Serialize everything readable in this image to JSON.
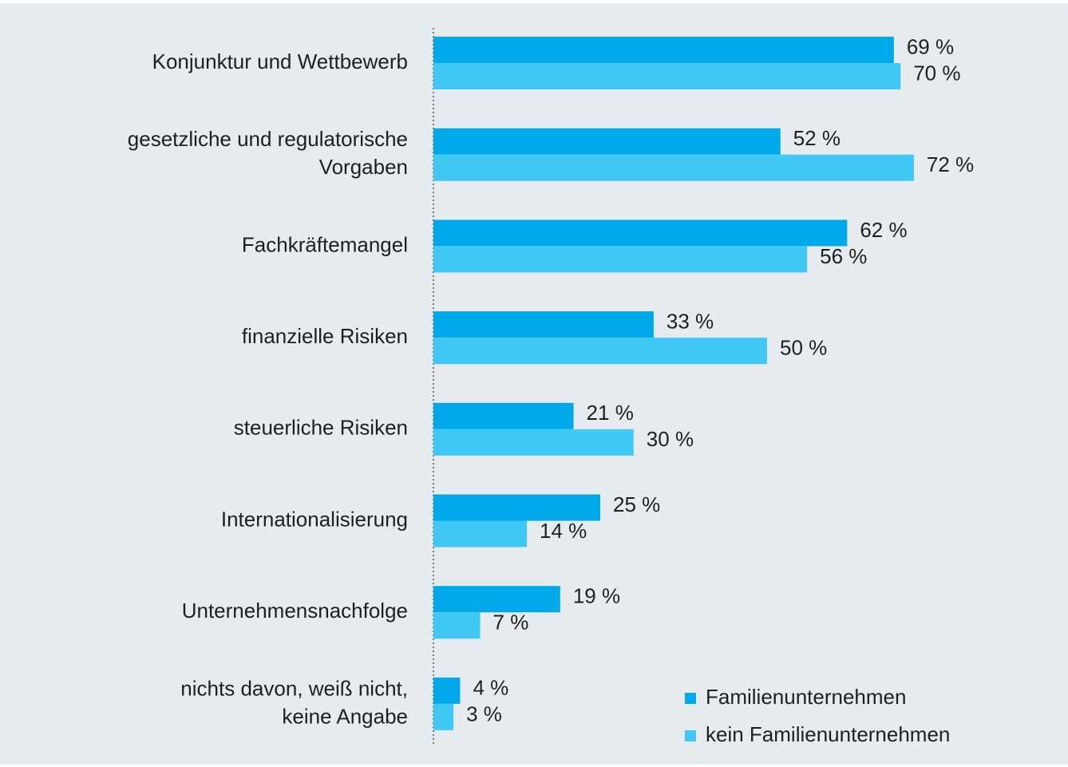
{
  "chart_data": {
    "type": "hbar",
    "categories": [
      "Konjunktur und Wettbewerb",
      "gesetzliche und regulatorische\nVorgaben",
      "Fachkräftemangel",
      "finanzielle Risiken",
      "steuerliche Risiken",
      "Internationalisierung",
      "Unternehmensnachfolge",
      "nichts davon, weiß nicht,\nkeine Angabe"
    ],
    "series": [
      {
        "name": "Familienunternehmen",
        "color": "#00a9e9",
        "values": [
          69,
          52,
          62,
          33,
          21,
          25,
          19,
          4
        ],
        "value_labels": [
          "69 %",
          "52 %",
          "62 %",
          "33 %",
          "21 %",
          "25 %",
          "19 %",
          "4 %"
        ]
      },
      {
        "name": "kein Familienunternehmen",
        "color": "#41c8f5",
        "values": [
          70,
          72,
          56,
          50,
          30,
          14,
          7,
          3
        ],
        "value_labels": [
          "70 %",
          "72 %",
          "56 %",
          "50 %",
          "30 %",
          "14 %",
          "7 %",
          "3 %"
        ]
      }
    ],
    "xlim": [
      0,
      100
    ],
    "legend": "lower right"
  }
}
